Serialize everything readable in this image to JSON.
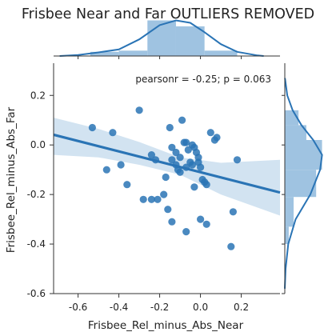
{
  "title": "Frisbee Near and Far OUTLIERS REMOVED",
  "chart_data": {
    "type": "scatter",
    "title": "Frisbee Near and Far OUTLIERS REMOVED",
    "xlabel": "Frisbee_Rel_minus_Abs_Near",
    "ylabel": "Frisbee_Rel_minus_Abs_Far",
    "annotation": "pearsonr = -0.25; p = 0.063",
    "xlim": [
      -0.72,
      0.39
    ],
    "ylim": [
      -0.6,
      0.33
    ],
    "xticks": [
      "-0.6",
      "-0.4",
      "-0.2",
      "0.0",
      "0.2"
    ],
    "yticks": [
      "0.2",
      "0.0",
      "-0.2",
      "-0.4",
      "-0.6"
    ],
    "grid": false,
    "point_color": "#2a74b5",
    "line_color": "#2a74b5",
    "ci_color": "#cde0f0",
    "hist_color": "#9fc3e1",
    "regression": {
      "slope": -0.21,
      "intercept": -0.11,
      "x_range": [
        -0.72,
        0.39
      ],
      "ci_upper": [
        [
          -0.72,
          0.11
        ],
        [
          -0.5,
          0.065
        ],
        [
          -0.3,
          0.012
        ],
        [
          -0.1,
          -0.05
        ],
        [
          0.1,
          -0.072
        ],
        [
          0.39,
          -0.06
        ]
      ],
      "ci_lower": [
        [
          -0.72,
          -0.04
        ],
        [
          -0.5,
          -0.05
        ],
        [
          -0.3,
          -0.08
        ],
        [
          -0.1,
          -0.12
        ],
        [
          0.1,
          -0.2
        ],
        [
          0.39,
          -0.285
        ]
      ]
    },
    "points": [
      {
        "x": -0.53,
        "y": 0.07
      },
      {
        "x": -0.43,
        "y": 0.05
      },
      {
        "x": -0.3,
        "y": 0.14
      },
      {
        "x": -0.46,
        "y": -0.1
      },
      {
        "x": -0.39,
        "y": -0.08
      },
      {
        "x": -0.36,
        "y": -0.16
      },
      {
        "x": -0.28,
        "y": -0.22
      },
      {
        "x": -0.24,
        "y": -0.22
      },
      {
        "x": -0.21,
        "y": -0.22
      },
      {
        "x": -0.18,
        "y": -0.2
      },
      {
        "x": -0.22,
        "y": -0.06
      },
      {
        "x": -0.17,
        "y": -0.13
      },
      {
        "x": -0.15,
        "y": 0.07
      },
      {
        "x": -0.14,
        "y": -0.06
      },
      {
        "x": -0.12,
        "y": -0.03
      },
      {
        "x": -0.14,
        "y": -0.01
      },
      {
        "x": -0.12,
        "y": -0.08
      },
      {
        "x": -0.11,
        "y": -0.1
      },
      {
        "x": -0.1,
        "y": -0.11
      },
      {
        "x": -0.1,
        "y": -0.05
      },
      {
        "x": -0.09,
        "y": 0.1
      },
      {
        "x": -0.08,
        "y": 0.01
      },
      {
        "x": -0.07,
        "y": 0.01
      },
      {
        "x": -0.07,
        "y": -0.09
      },
      {
        "x": -0.06,
        "y": -0.02
      },
      {
        "x": -0.05,
        "y": -0.07
      },
      {
        "x": -0.04,
        "y": 0.0
      },
      {
        "x": -0.04,
        "y": -0.08
      },
      {
        "x": -0.03,
        "y": -0.01
      },
      {
        "x": -0.03,
        "y": -0.17
      },
      {
        "x": -0.02,
        "y": -0.03
      },
      {
        "x": -0.01,
        "y": -0.05
      },
      {
        "x": -0.01,
        "y": -0.07
      },
      {
        "x": 0.0,
        "y": -0.09
      },
      {
        "x": 0.01,
        "y": -0.14
      },
      {
        "x": 0.02,
        "y": -0.15
      },
      {
        "x": 0.03,
        "y": -0.16
      },
      {
        "x": 0.05,
        "y": 0.05
      },
      {
        "x": 0.07,
        "y": 0.02
      },
      {
        "x": 0.08,
        "y": 0.03
      },
      {
        "x": 0.18,
        "y": -0.06
      },
      {
        "x": 0.16,
        "y": -0.27
      },
      {
        "x": 0.15,
        "y": -0.41
      },
      {
        "x": 0.0,
        "y": -0.3
      },
      {
        "x": 0.03,
        "y": -0.32
      },
      {
        "x": -0.07,
        "y": -0.35
      },
      {
        "x": -0.14,
        "y": -0.31
      },
      {
        "x": -0.16,
        "y": -0.26
      },
      {
        "x": -0.24,
        "y": -0.04
      }
    ],
    "marginal_x": {
      "bins": [
        {
          "x0": -0.54,
          "x1": -0.4,
          "density": 0.35
        },
        {
          "x0": -0.4,
          "x1": -0.26,
          "density": 0.45
        },
        {
          "x0": -0.26,
          "x1": -0.12,
          "density": 3.0
        },
        {
          "x0": -0.12,
          "x1": 0.02,
          "density": 2.5
        },
        {
          "x0": 0.02,
          "x1": 0.18,
          "density": 0.45
        }
      ],
      "kde": [
        [
          -0.69,
          0.0
        ],
        [
          -0.6,
          0.08
        ],
        [
          -0.5,
          0.3
        ],
        [
          -0.4,
          0.55
        ],
        [
          -0.3,
          1.4
        ],
        [
          -0.2,
          2.6
        ],
        [
          -0.12,
          3.0
        ],
        [
          -0.05,
          2.8
        ],
        [
          0.02,
          2.0
        ],
        [
          0.1,
          1.0
        ],
        [
          0.18,
          0.35
        ],
        [
          0.28,
          0.05
        ],
        [
          0.31,
          0.0
        ]
      ],
      "density_max": 3.1
    },
    "marginal_y": {
      "bins": [
        {
          "y0": -0.4,
          "y1": -0.33,
          "density": 0.4
        },
        {
          "y0": -0.33,
          "y1": -0.21,
          "density": 0.9
        },
        {
          "y0": -0.21,
          "y1": -0.1,
          "density": 3.2
        },
        {
          "y0": -0.1,
          "y1": 0.02,
          "density": 3.8
        },
        {
          "y0": 0.02,
          "y1": 0.08,
          "density": 2.2
        },
        {
          "y0": 0.08,
          "y1": 0.14,
          "density": 1.4
        }
      ],
      "kde": [
        [
          -0.58,
          0.0
        ],
        [
          -0.5,
          0.08
        ],
        [
          -0.4,
          0.35
        ],
        [
          -0.3,
          1.1
        ],
        [
          -0.2,
          2.6
        ],
        [
          -0.1,
          3.6
        ],
        [
          -0.04,
          3.8
        ],
        [
          0.02,
          2.9
        ],
        [
          0.08,
          1.7
        ],
        [
          0.14,
          0.8
        ],
        [
          0.2,
          0.25
        ],
        [
          0.27,
          0.02
        ]
      ],
      "density_max": 4.0
    }
  }
}
